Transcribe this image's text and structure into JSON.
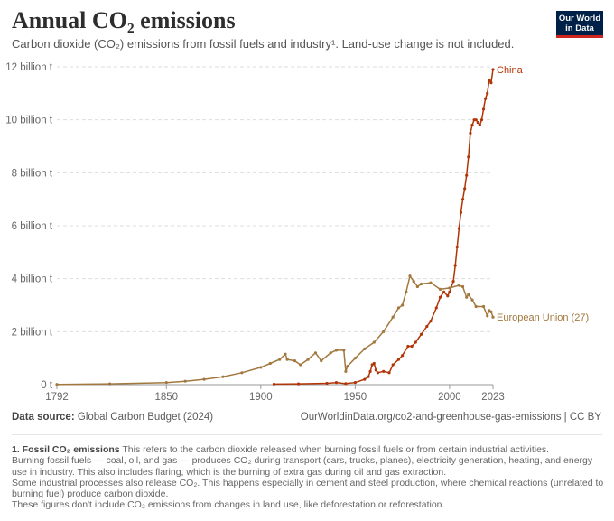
{
  "header": {
    "title": "Annual CO₂ emissions",
    "subtitle": "Carbon dioxide (CO₂) emissions from fossil fuels and industry¹. Land-use change is not included.",
    "logo": "Our World in Data"
  },
  "chart_data": {
    "type": "line",
    "title": "Annual CO₂ emissions",
    "xlim": [
      1792,
      2023
    ],
    "ylim": [
      0,
      12
    ],
    "grid": "horizontal dashed",
    "legend": "inline labels at line ends",
    "x_ticks": [
      "1792",
      "1850",
      "1900",
      "1950",
      "2000",
      "2023"
    ],
    "y_ticks": [
      {
        "v": 0,
        "label": "0 t"
      },
      {
        "v": 2,
        "label": "2 billion t"
      },
      {
        "v": 4,
        "label": "4 billion t"
      },
      {
        "v": 6,
        "label": "6 billion t"
      },
      {
        "v": 8,
        "label": "8 billion t"
      },
      {
        "v": 10,
        "label": "10 billion t"
      },
      {
        "v": 12,
        "label": "12 billion t"
      }
    ],
    "series": [
      {
        "name": "China",
        "color": "#b13507",
        "points": [
          [
            1907,
            0.02
          ],
          [
            1920,
            0.03
          ],
          [
            1935,
            0.05
          ],
          [
            1940,
            0.08
          ],
          [
            1945,
            0.04
          ],
          [
            1950,
            0.08
          ],
          [
            1955,
            0.2
          ],
          [
            1957,
            0.3
          ],
          [
            1958,
            0.5
          ],
          [
            1959,
            0.75
          ],
          [
            1960,
            0.8
          ],
          [
            1961,
            0.55
          ],
          [
            1962,
            0.45
          ],
          [
            1965,
            0.5
          ],
          [
            1968,
            0.45
          ],
          [
            1970,
            0.75
          ],
          [
            1973,
            0.95
          ],
          [
            1975,
            1.1
          ],
          [
            1978,
            1.45
          ],
          [
            1980,
            1.45
          ],
          [
            1982,
            1.6
          ],
          [
            1985,
            1.9
          ],
          [
            1988,
            2.2
          ],
          [
            1990,
            2.4
          ],
          [
            1993,
            2.9
          ],
          [
            1995,
            3.3
          ],
          [
            1997,
            3.5
          ],
          [
            1999,
            3.35
          ],
          [
            2000,
            3.5
          ],
          [
            2002,
            3.9
          ],
          [
            2003,
            4.5
          ],
          [
            2004,
            5.2
          ],
          [
            2005,
            5.9
          ],
          [
            2006,
            6.5
          ],
          [
            2007,
            7.0
          ],
          [
            2008,
            7.4
          ],
          [
            2009,
            7.9
          ],
          [
            2010,
            8.6
          ],
          [
            2011,
            9.5
          ],
          [
            2012,
            9.8
          ],
          [
            2013,
            10.0
          ],
          [
            2014,
            10.0
          ],
          [
            2015,
            9.9
          ],
          [
            2016,
            9.8
          ],
          [
            2017,
            10.0
          ],
          [
            2018,
            10.4
          ],
          [
            2019,
            10.8
          ],
          [
            2020,
            11.0
          ],
          [
            2021,
            11.5
          ],
          [
            2022,
            11.4
          ],
          [
            2023,
            11.9
          ]
        ]
      },
      {
        "name": "European Union (27)",
        "color": "#a2783f",
        "points": [
          [
            1792,
            0.01
          ],
          [
            1820,
            0.03
          ],
          [
            1850,
            0.08
          ],
          [
            1860,
            0.13
          ],
          [
            1870,
            0.2
          ],
          [
            1880,
            0.3
          ],
          [
            1890,
            0.45
          ],
          [
            1900,
            0.65
          ],
          [
            1905,
            0.8
          ],
          [
            1910,
            0.95
          ],
          [
            1913,
            1.15
          ],
          [
            1914,
            0.95
          ],
          [
            1918,
            0.9
          ],
          [
            1921,
            0.75
          ],
          [
            1925,
            0.95
          ],
          [
            1929,
            1.2
          ],
          [
            1932,
            0.9
          ],
          [
            1937,
            1.2
          ],
          [
            1940,
            1.3
          ],
          [
            1944,
            1.3
          ],
          [
            1945,
            0.5
          ],
          [
            1946,
            0.7
          ],
          [
            1950,
            1.0
          ],
          [
            1955,
            1.35
          ],
          [
            1960,
            1.6
          ],
          [
            1965,
            2.0
          ],
          [
            1970,
            2.55
          ],
          [
            1973,
            2.9
          ],
          [
            1975,
            3.0
          ],
          [
            1977,
            3.5
          ],
          [
            1979,
            4.1
          ],
          [
            1981,
            3.9
          ],
          [
            1983,
            3.7
          ],
          [
            1985,
            3.8
          ],
          [
            1990,
            3.85
          ],
          [
            1995,
            3.6
          ],
          [
            2000,
            3.65
          ],
          [
            2005,
            3.75
          ],
          [
            2007,
            3.7
          ],
          [
            2009,
            3.3
          ],
          [
            2010,
            3.4
          ],
          [
            2012,
            3.2
          ],
          [
            2014,
            2.95
          ],
          [
            2018,
            2.95
          ],
          [
            2020,
            2.6
          ],
          [
            2021,
            2.8
          ],
          [
            2022,
            2.75
          ],
          [
            2023,
            2.55
          ]
        ]
      }
    ]
  },
  "footer": {
    "source_label": "Data source:",
    "source": "Global Carbon Budget (2024)",
    "url": "OurWorldinData.org/co2-and-greenhouse-gas-emissions | CC BY"
  },
  "notes": {
    "heading": "1. Fossil CO₂ emissions",
    "lines": [
      "This refers to the carbon dioxide released when burning fossil fuels or from certain industrial activities.",
      "Burning fossil fuels — coal, oil, and gas — produces CO₂ during transport (cars, trucks, planes), electricity generation, heating, and energy use in industry. This also includes flaring, which is the burning of extra gas during oil and gas extraction.",
      "Some industrial processes also release CO₂. This happens especially in cement and steel production, where chemical reactions (unrelated to burning fuel) produce carbon dioxide.",
      "These figures don't include CO₂ emissions from changes in land use, like deforestation or reforestation."
    ]
  }
}
